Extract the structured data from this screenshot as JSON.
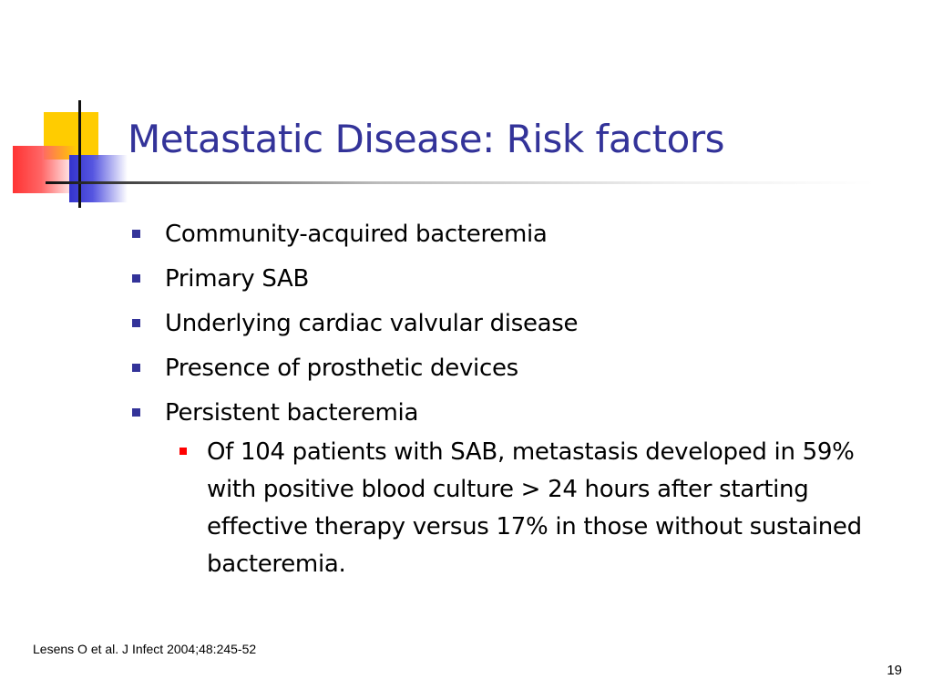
{
  "slide": {
    "title": "Metastatic Disease: Risk factors",
    "bullets": [
      "Community-acquired bacteremia",
      "Primary SAB",
      "Underlying cardiac valvular disease",
      "Presence of prosthetic devices",
      "Persistent bacteremia"
    ],
    "sub_bullets": [
      "Of 104 patients with SAB, metastasis developed in 59% with positive blood culture > 24 hours after starting effective therapy versus 17% in those without sustained bacteremia."
    ],
    "citation": "Lesens O et al. J Infect 2004;48:245-52",
    "page_number": "19"
  },
  "colors": {
    "title": "#333399",
    "bullet_marker": "#333399",
    "sub_bullet_marker": "#ff0000",
    "logo_yellow": "#ffcc00",
    "logo_red": "#ff3333",
    "logo_blue": "#3333cc"
  }
}
